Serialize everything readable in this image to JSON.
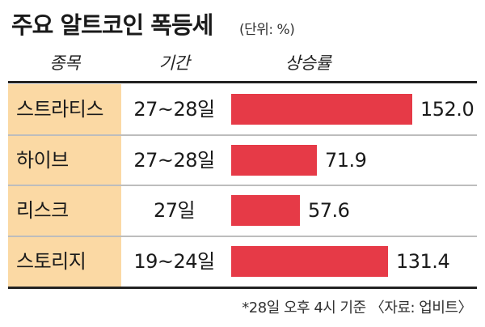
{
  "title": "주요 알트코인 폭등세",
  "unit_note": "(단위: %)",
  "headers": {
    "name": "종목",
    "period": "기간",
    "rise": "상승률"
  },
  "footnote": "*28일 오후 4시 기준 〈자료: 업비트〉",
  "colors": {
    "bar": "#e63a47",
    "name_bg": "#fbd9a4"
  },
  "chart_data": {
    "type": "bar",
    "orientation": "horizontal",
    "categories": [
      "스트라티스",
      "하이브",
      "리스크",
      "스토리지"
    ],
    "periods": [
      "27~28일",
      "27~28일",
      "27일",
      "19~24일"
    ],
    "values": [
      152.0,
      71.9,
      57.6,
      131.4
    ],
    "value_labels": [
      "152.0",
      "71.9",
      "57.6",
      "131.4"
    ],
    "xlim": [
      0,
      152.0
    ],
    "grid": false
  }
}
